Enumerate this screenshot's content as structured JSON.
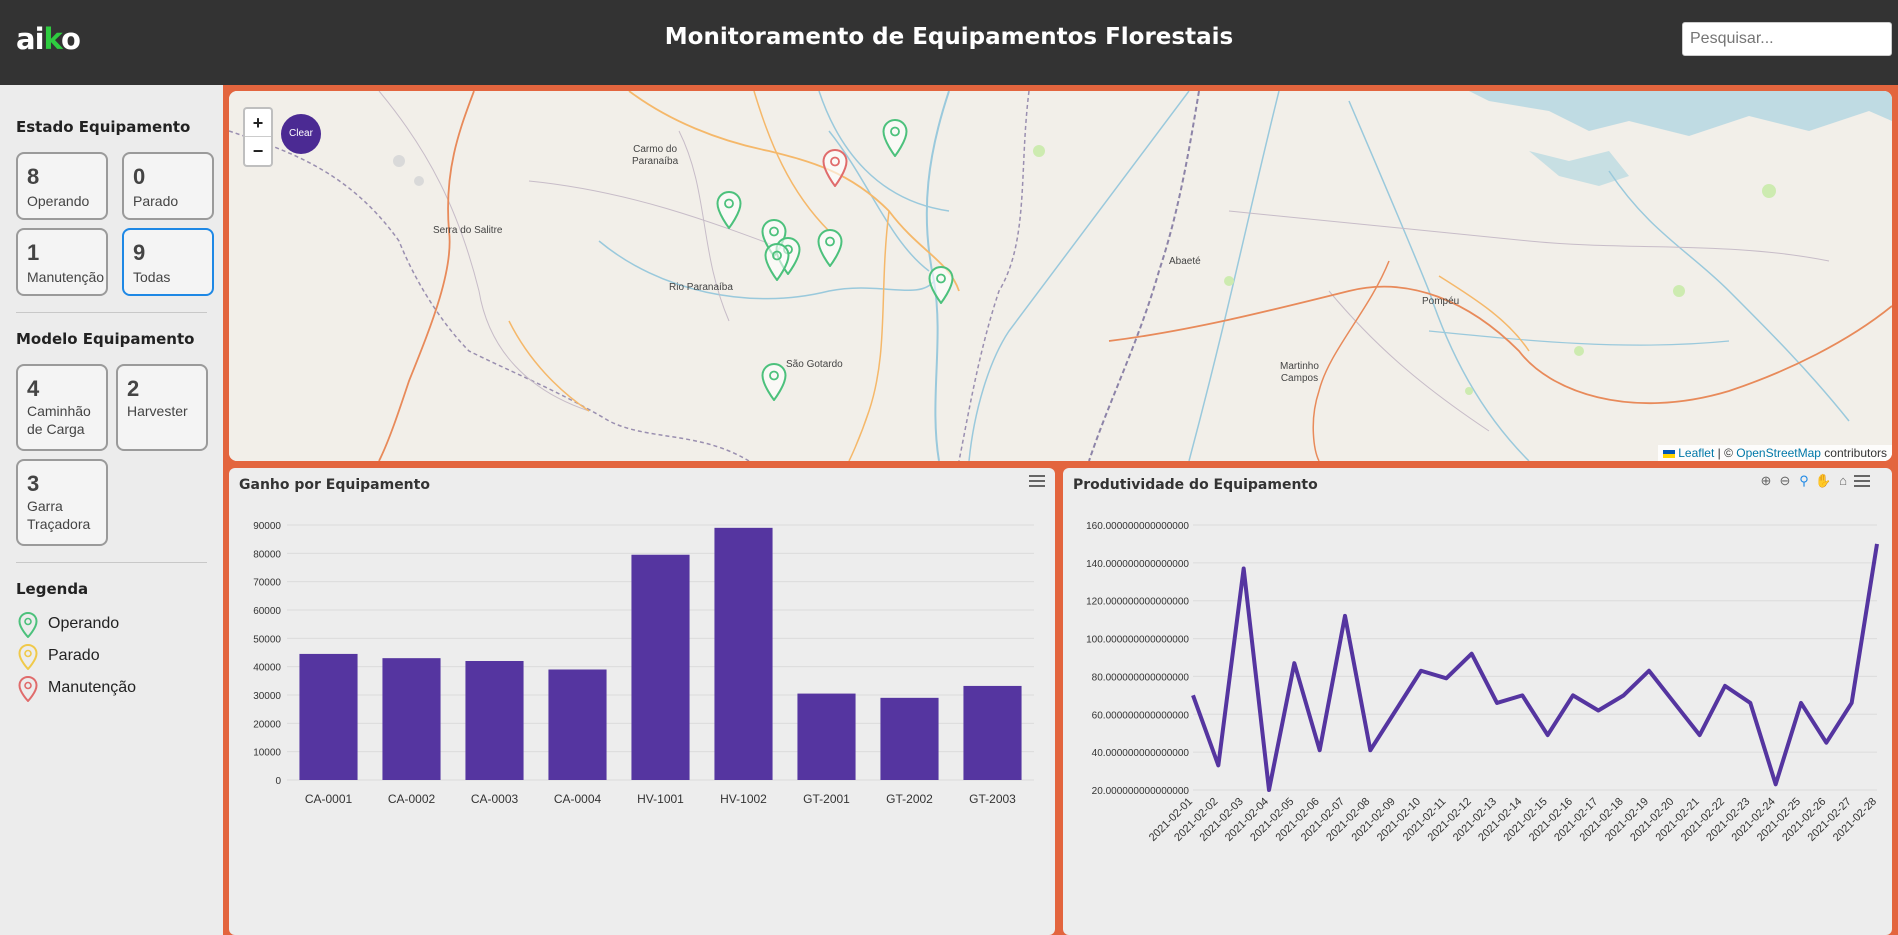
{
  "header": {
    "logo_main": "ai",
    "logo_accent": "k",
    "logo_end": "o",
    "title": "Monitoramento de Equipamentos Florestais",
    "search_placeholder": "Pesquisar..."
  },
  "sidebar": {
    "estado_title": "Estado Equipamento",
    "estado_cards": [
      {
        "count": "8",
        "label": "Operando"
      },
      {
        "count": "0",
        "label": "Parado"
      },
      {
        "count": "1",
        "label": "Manutenção"
      },
      {
        "count": "9",
        "label": "Todas"
      }
    ],
    "modelo_title": "Modelo Equipamento",
    "modelo_cards": [
      {
        "count": "4",
        "label": "Caminhão de Carga"
      },
      {
        "count": "2",
        "label": "Harvester"
      },
      {
        "count": "3",
        "label": "Garra Traçadora"
      }
    ],
    "legend_title": "Legenda",
    "legend": [
      {
        "label": "Operando",
        "color": "#4cc17c"
      },
      {
        "label": "Parado",
        "color": "#f0c94a"
      },
      {
        "label": "Manutenção",
        "color": "#e06b6b"
      }
    ]
  },
  "map": {
    "zoom_in": "+",
    "zoom_out": "−",
    "clear_label": "Clear",
    "towns": [
      {
        "name": "Carmo do\nParanaíba"
      },
      {
        "name": "Serra do Salitre"
      },
      {
        "name": "Rio Paranaíba"
      },
      {
        "name": "São Gotardo"
      },
      {
        "name": "Abaeté"
      },
      {
        "name": "Pompéu"
      },
      {
        "name": "Martinho\nCampos"
      }
    ],
    "attribution_leaflet": "Leaflet",
    "attribution_sep": " | © ",
    "attribution_osm": "OpenStreetMap",
    "attribution_tail": " contributors",
    "marker_colors": {
      "operando": "#4cc17c",
      "manutencao": "#e06b6b"
    }
  },
  "chart_data": [
    {
      "type": "bar",
      "title": "Ganho por Equipamento",
      "categories": [
        "CA-0001",
        "CA-0002",
        "CA-0003",
        "CA-0004",
        "HV-1001",
        "HV-1002",
        "GT-2001",
        "GT-2002",
        "GT-2003"
      ],
      "values": [
        44500,
        43000,
        42000,
        39000,
        79500,
        89000,
        30500,
        29000,
        33200
      ],
      "yticks": [
        "0",
        "10000",
        "20000",
        "30000",
        "40000",
        "50000",
        "60000",
        "70000",
        "80000",
        "90000"
      ],
      "ylim": [
        0,
        90000
      ],
      "color": "#5535a0"
    },
    {
      "type": "line",
      "title": "Produtividade do Equipamento",
      "x": [
        "2021-02-01",
        "2021-02-02",
        "2021-02-03",
        "2021-02-04",
        "2021-02-05",
        "2021-02-06",
        "2021-02-07",
        "2021-02-08",
        "2021-02-09",
        "2021-02-10",
        "2021-02-11",
        "2021-02-12",
        "2021-02-13",
        "2021-02-14",
        "2021-02-15",
        "2021-02-16",
        "2021-02-17",
        "2021-02-18",
        "2021-02-19",
        "2021-02-20",
        "2021-02-21",
        "2021-02-22",
        "2021-02-23",
        "2021-02-24",
        "2021-02-25",
        "2021-02-26",
        "2021-02-27",
        "2021-02-28"
      ],
      "values": [
        70,
        33,
        137,
        20,
        87,
        41,
        112,
        41,
        62,
        83,
        79,
        92,
        66,
        70,
        49,
        70,
        62,
        70,
        83,
        66,
        49,
        75,
        66,
        23,
        66,
        45,
        66,
        150
      ],
      "yticks": [
        "20.000000000000000",
        "40.000000000000000",
        "60.000000000000000",
        "80.000000000000000",
        "100.000000000000000",
        "120.000000000000000",
        "140.000000000000000",
        "160.000000000000000"
      ],
      "ylim": [
        20,
        160
      ],
      "color": "#5535a0"
    }
  ]
}
